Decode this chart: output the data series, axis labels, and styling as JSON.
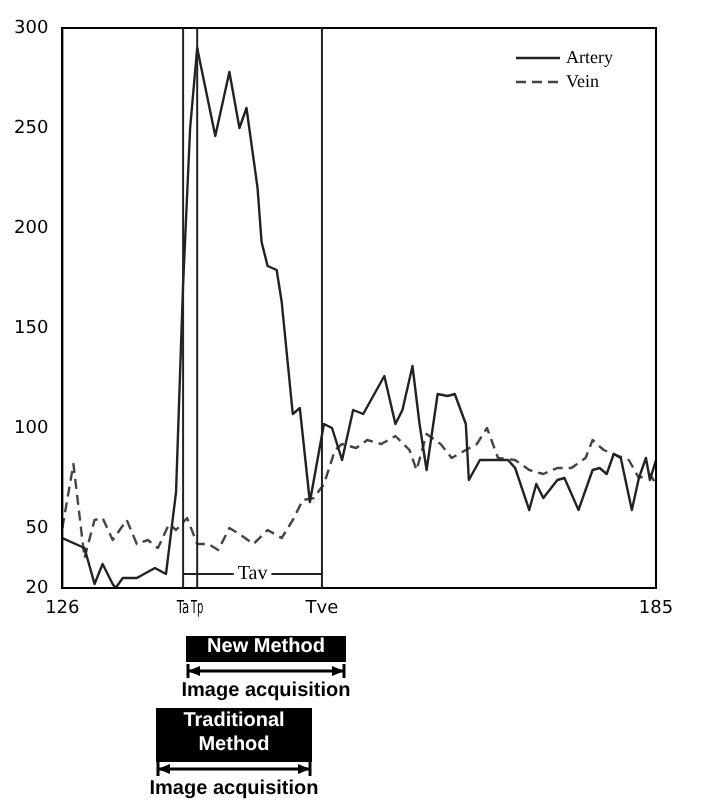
{
  "chart_data": {
    "type": "line",
    "xlim": [
      126,
      185
    ],
    "ylim": [
      20,
      300
    ],
    "xticks": [
      126,
      {
        "value": 138,
        "label": "Ta"
      },
      {
        "value": 139.4,
        "label": "Tp"
      },
      {
        "value": 151.8,
        "label": "Tve"
      },
      185
    ],
    "yticks": [
      20,
      50,
      100,
      150,
      200,
      250,
      300
    ],
    "grid": false,
    "legend": "top right",
    "marker": "none",
    "series": [
      {
        "name": "Artery",
        "color": "#222222",
        "line_style": "solid",
        "x": [
          126,
          128.2,
          129.2,
          130,
          131,
          131.3,
          132,
          133.4,
          135.2,
          136.3,
          137.3,
          138,
          138.7,
          139.4,
          141.2,
          142.6,
          143.6,
          144.3,
          145.4,
          145.8,
          146.4,
          147.3,
          147.8,
          148.9,
          149.6,
          150.6,
          152,
          152.8,
          153.8,
          154.9,
          155.9,
          158,
          159.1,
          159.8,
          160.8,
          161.5,
          162.2,
          163.3,
          164.3,
          165,
          166.1,
          166.4,
          167.5,
          170.3,
          171,
          172.4,
          173.1,
          173.8,
          175.2,
          175.9,
          177.3,
          178.7,
          179.4,
          180.1,
          180.8,
          181.5,
          182.6,
          183.3,
          184,
          184.4,
          185
        ],
        "values": [
          45,
          40,
          22,
          32,
          22,
          20,
          25,
          25,
          30,
          27,
          68,
          172,
          250,
          290,
          246,
          278,
          250,
          260,
          220,
          193,
          181,
          179,
          163,
          107,
          110,
          63,
          102,
          100,
          84,
          109,
          107,
          126,
          102,
          109,
          131,
          102,
          79,
          117,
          116,
          117,
          102,
          74,
          84,
          84,
          80,
          59,
          72,
          65,
          74,
          75,
          59,
          79,
          80,
          77,
          87,
          85,
          59,
          75,
          85,
          74,
          84
        ]
      },
      {
        "name": "Vein",
        "color": "#444444",
        "line_style": "dashed",
        "x": [
          126,
          127.1,
          128.2,
          129.2,
          130,
          131,
          132.4,
          133.4,
          134.5,
          135.5,
          136.6,
          137.3,
          138.4,
          139.4,
          140.5,
          141.5,
          142.6,
          143.6,
          145,
          146.4,
          147.8,
          148.9,
          149.9,
          151,
          152,
          153.1,
          153.8,
          155.2,
          156.3,
          157.7,
          159.1,
          160.5,
          161.2,
          162.2,
          163.6,
          164.7,
          166.1,
          167.2,
          168.2,
          169.3,
          171,
          172.4,
          173.8,
          175.2,
          176.6,
          178,
          178.7,
          179.8,
          180.8,
          182.3,
          183.3,
          184.4,
          185
        ],
        "values": [
          50,
          82,
          35,
          54,
          55,
          44,
          54,
          42,
          44,
          40,
          52,
          49,
          55,
          42,
          42,
          39,
          50,
          47,
          42,
          49,
          45,
          54,
          64,
          65,
          72,
          89,
          92,
          90,
          94,
          92,
          96,
          89,
          79,
          97,
          92,
          85,
          89,
          92,
          100,
          85,
          84,
          79,
          77,
          80,
          80,
          85,
          94,
          89,
          87,
          84,
          75,
          77,
          72
        ]
      }
    ],
    "ref_lines": [
      {
        "axis": "x",
        "value": 138
      },
      {
        "axis": "x",
        "value": 139.4
      },
      {
        "axis": "x",
        "value": 151.8
      }
    ],
    "annotations": [
      "Tav",
      "New Method",
      "Image acquisition",
      "Traditional Method",
      "Image acquisition"
    ]
  }
}
